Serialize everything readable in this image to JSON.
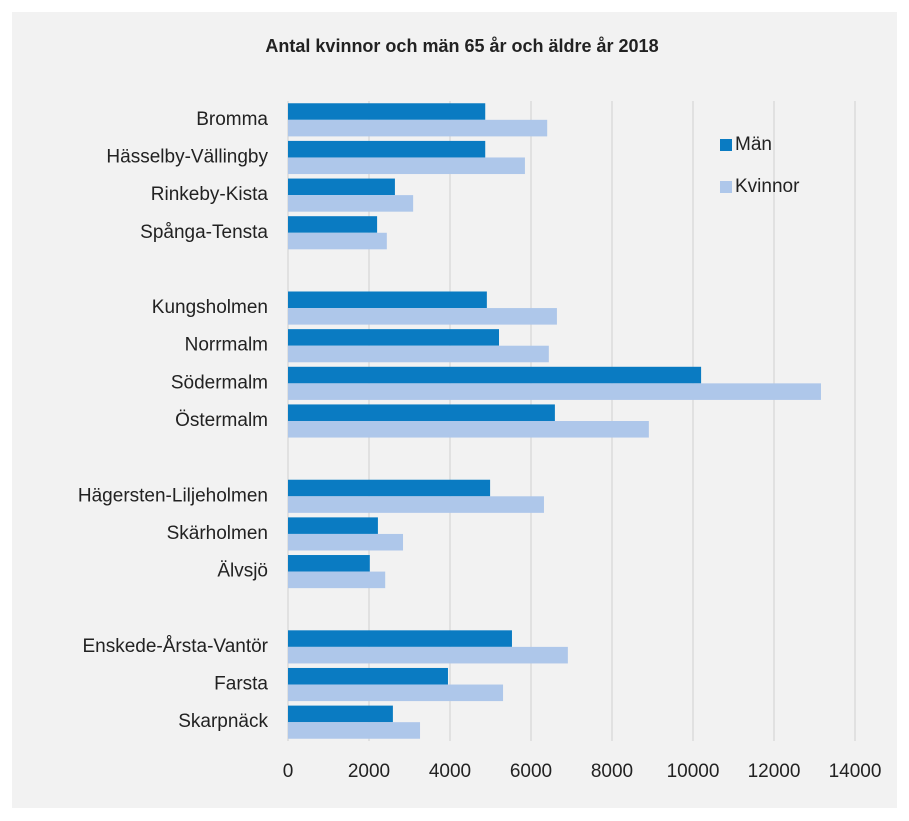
{
  "chart_data": {
    "type": "hbar",
    "title": "Antal kvinnor och män 65 år och äldre år 2018",
    "categories": [
      "Bromma",
      "Hässelby-Vällingby",
      "Rinkeby-Kista",
      "Spånga-Tensta",
      null,
      "Kungsholmen",
      "Norrmalm",
      "Södermalm",
      "Östermalm",
      null,
      "Hägersten-Liljeholmen",
      "Skärholmen",
      "Älvsjö",
      null,
      "Enskede-Årsta-Vantör",
      "Farsta",
      "Skarpnäck"
    ],
    "series": [
      {
        "name": "Män",
        "color": "#0a7bc2",
        "values": [
          4870,
          4870,
          2640,
          2200,
          null,
          4910,
          5210,
          10200,
          6590,
          null,
          4990,
          2220,
          2020,
          null,
          5530,
          3950,
          2590
        ]
      },
      {
        "name": "Kvinnor",
        "color": "#aec7ea",
        "values": [
          6400,
          5850,
          3090,
          2440,
          null,
          6640,
          6440,
          13160,
          8910,
          null,
          6320,
          2840,
          2400,
          null,
          6910,
          5310,
          3260
        ]
      }
    ],
    "xlim": [
      0,
      14000
    ],
    "xticks": [
      0,
      2000,
      4000,
      6000,
      8000,
      10000,
      12000,
      14000
    ],
    "grid": true,
    "legend": "top-right"
  }
}
